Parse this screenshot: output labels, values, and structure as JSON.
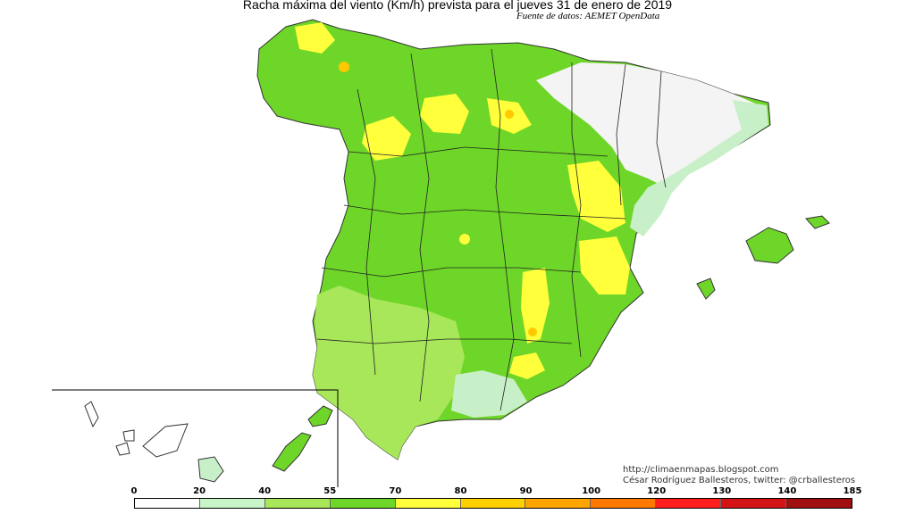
{
  "title": "Racha máxima del viento (Km/h) prevista para el jueves 31 de enero de 2019",
  "source": "Fuente de datos: AEMET OpenData",
  "credits": {
    "url": "http://climaenmapas.blogspot.com",
    "author": "César Rodríguez Ballesteros, twitter: @crballesteros"
  },
  "legend": {
    "ticks": [
      "0",
      "20",
      "40",
      "55",
      "70",
      "80",
      "90",
      "100",
      "120",
      "130",
      "140",
      "185"
    ],
    "colors": [
      "#ffffff",
      "#c8f5c8",
      "#a8e65a",
      "#6ed628",
      "#ffff3c",
      "#ffd000",
      "#ffa500",
      "#ff7800",
      "#ff1e1e",
      "#d41414",
      "#a01010"
    ]
  },
  "map_colors": {
    "calm": "#f4f4f4",
    "light": "#c8f0c8",
    "moderate": "#a8e65a",
    "fresh": "#6ed628",
    "strong": "#ffff3c",
    "gust": "#ffc800",
    "border": "#222222"
  }
}
